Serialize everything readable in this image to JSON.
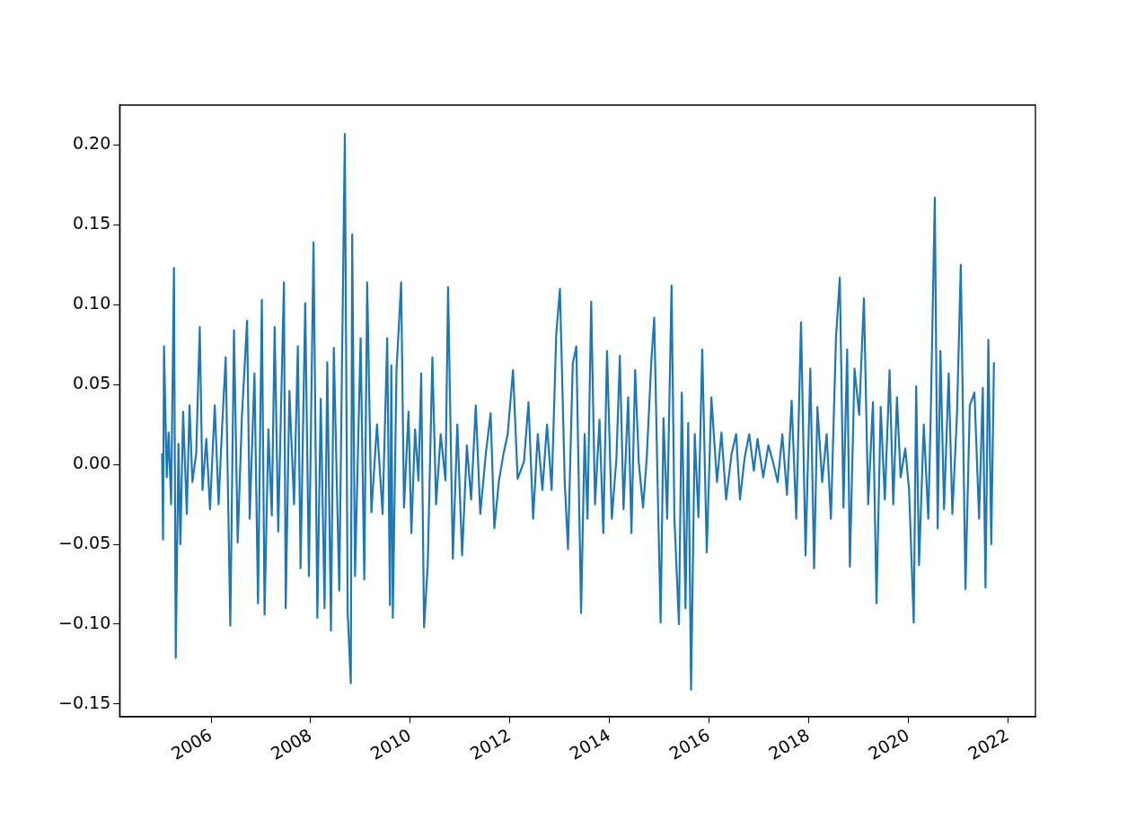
{
  "chart_data": {
    "type": "line",
    "xlim": [
      "2004-03-01",
      "2022-07-22"
    ],
    "xticks": [
      "2006",
      "2008",
      "2010",
      "2012",
      "2014",
      "2016",
      "2018",
      "2020",
      "2022"
    ],
    "ylim": [
      -0.158,
      0.225
    ],
    "yticks": [
      {
        "value": -0.15,
        "label": "−0.15"
      },
      {
        "value": -0.1,
        "label": "−0.10"
      },
      {
        "value": -0.05,
        "label": "−0.05"
      },
      {
        "value": 0,
        "label": "0.00"
      },
      {
        "value": 0.05,
        "label": "0.05"
      },
      {
        "value": 0.1,
        "label": "0.10"
      },
      {
        "value": 0.15,
        "label": "0.15"
      },
      {
        "value": 0.2,
        "label": "0.20"
      }
    ],
    "series": [
      {
        "color": "#1f77b4",
        "x": [
          "2005-01-07",
          "2005-01-14",
          "2005-01-21",
          "2005-02-10",
          "2005-02-24",
          "2005-03-14",
          "2005-04-04",
          "2005-04-17",
          "2005-05-07",
          "2005-05-21",
          "2005-06-10",
          "2005-07-07",
          "2005-07-27",
          "2005-08-17",
          "2005-09-14",
          "2005-10-10",
          "2005-10-30",
          "2005-11-27",
          "2005-12-24",
          "2006-01-28",
          "2006-02-25",
          "2006-03-22",
          "2006-04-18",
          "2006-05-22",
          "2006-06-18",
          "2006-07-15",
          "2006-08-15",
          "2006-09-22",
          "2006-10-11",
          "2006-11-15",
          "2006-12-11",
          "2007-01-08",
          "2007-01-28",
          "2007-02-25",
          "2007-03-22",
          "2007-04-12",
          "2007-05-08",
          "2007-06-19",
          "2007-07-02",
          "2007-07-29",
          "2007-09-01",
          "2007-09-29",
          "2007-10-19",
          "2007-11-22",
          "2007-12-19",
          "2008-01-22",
          "2008-02-19",
          "2008-03-15",
          "2008-04-12",
          "2008-05-02",
          "2008-05-29",
          "2008-06-19",
          "2008-07-29",
          "2008-09-08",
          "2008-09-29",
          "2008-10-22",
          "2008-11-01",
          "2008-11-22",
          "2009-01-02",
          "2009-01-29",
          "2009-02-19",
          "2009-03-22",
          "2009-05-02",
          "2009-06-12",
          "2009-07-16",
          "2009-08-05",
          "2009-08-15",
          "2009-08-26",
          "2009-09-22",
          "2009-10-26",
          "2009-11-16",
          "2009-12-19",
          "2010-01-09",
          "2010-02-05",
          "2010-03-02",
          "2010-03-22",
          "2010-04-12",
          "2010-05-09",
          "2010-06-12",
          "2010-07-09",
          "2010-08-12",
          "2010-09-16",
          "2010-10-05",
          "2010-11-09",
          "2010-12-12",
          "2011-01-16",
          "2011-02-20",
          "2011-03-23",
          "2011-04-26",
          "2011-05-29",
          "2011-07-09",
          "2011-08-13",
          "2011-09-09",
          "2011-10-13",
          "2011-11-16",
          "2011-12-16",
          "2012-01-24",
          "2012-02-27",
          "2012-04-14",
          "2012-05-17",
          "2012-06-20",
          "2012-07-24",
          "2012-08-27",
          "2012-09-30",
          "2012-11-03",
          "2012-12-07",
          "2013-01-03",
          "2013-02-07",
          "2013-03-03",
          "2013-04-07",
          "2013-05-03",
          "2013-06-07",
          "2013-07-03",
          "2013-07-24",
          "2013-08-20",
          "2013-09-17",
          "2013-10-20",
          "2013-11-17",
          "2013-12-14",
          "2014-01-18",
          "2014-02-21",
          "2014-03-18",
          "2014-04-14",
          "2014-05-18",
          "2014-06-11",
          "2014-07-08",
          "2014-08-04",
          "2014-09-04",
          "2014-10-01",
          "2014-11-04",
          "2014-11-25",
          "2014-12-18",
          "2015-01-11",
          "2015-02-01",
          "2015-02-28",
          "2015-04-01",
          "2015-04-22",
          "2015-05-25",
          "2015-06-15",
          "2015-07-12",
          "2015-08-01",
          "2015-08-22",
          "2015-09-18",
          "2015-10-15",
          "2015-11-12",
          "2015-12-15",
          "2016-01-18",
          "2016-02-28",
          "2016-04-01",
          "2016-05-05",
          "2016-06-15",
          "2016-07-18",
          "2016-08-15",
          "2016-09-18",
          "2016-10-22",
          "2016-11-25",
          "2016-12-22",
          "2017-02-02",
          "2017-03-12",
          "2017-04-16",
          "2017-05-19",
          "2017-06-22",
          "2017-07-26",
          "2017-08-29",
          "2017-10-02",
          "2017-11-06",
          "2017-12-09",
          "2018-01-13",
          "2018-02-10",
          "2018-03-06",
          "2018-04-10",
          "2018-05-13",
          "2018-06-13",
          "2018-07-20",
          "2018-08-17",
          "2018-09-13",
          "2018-10-10",
          "2018-10-30",
          "2018-12-03",
          "2019-01-06",
          "2019-02-10",
          "2019-03-13",
          "2019-04-17",
          "2019-05-13",
          "2019-06-13",
          "2019-07-13",
          "2019-08-17",
          "2019-09-13",
          "2019-10-10",
          "2019-11-06",
          "2019-12-10",
          "2020-01-07",
          "2020-02-10",
          "2020-02-28",
          "2020-03-20",
          "2020-04-24",
          "2020-05-27",
          "2020-06-14",
          "2020-07-14",
          "2020-08-04",
          "2020-08-24",
          "2020-09-20",
          "2020-10-24",
          "2020-11-20",
          "2020-12-24",
          "2021-01-21",
          "2021-02-24",
          "2021-03-28",
          "2021-05-01",
          "2021-06-04",
          "2021-07-01",
          "2021-07-21",
          "2021-08-11",
          "2021-09-01",
          "2021-09-21"
        ],
        "values": [
          0.007,
          -0.047,
          0.074,
          -0.008,
          0.02,
          -0.025,
          0.123,
          -0.121,
          0.013,
          -0.05,
          0.033,
          -0.031,
          0.037,
          -0.011,
          0.007,
          0.086,
          -0.016,
          0.016,
          -0.028,
          0.037,
          -0.025,
          0.022,
          0.067,
          -0.101,
          0.084,
          -0.049,
          0.03,
          0.09,
          -0.034,
          0.057,
          -0.087,
          0.103,
          -0.094,
          0.022,
          -0.032,
          0.086,
          -0.042,
          0.114,
          -0.09,
          0.046,
          -0.025,
          0.074,
          -0.065,
          0.101,
          -0.07,
          0.139,
          -0.096,
          0.041,
          -0.09,
          0.064,
          -0.104,
          0.073,
          -0.079,
          0.207,
          -0.093,
          -0.137,
          0.144,
          -0.07,
          0.079,
          -0.072,
          0.114,
          -0.03,
          0.025,
          -0.031,
          0.079,
          -0.088,
          0.062,
          -0.096,
          0.059,
          0.114,
          -0.027,
          0.033,
          -0.043,
          0.022,
          -0.01,
          0.057,
          -0.102,
          -0.063,
          0.067,
          -0.025,
          0.019,
          -0.01,
          0.111,
          -0.059,
          0.025,
          -0.057,
          0.012,
          -0.022,
          0.037,
          -0.031,
          0.007,
          0.032,
          -0.04,
          -0.01,
          0.007,
          0.019,
          0.059,
          -0.009,
          0.002,
          0.039,
          -0.034,
          0.019,
          -0.016,
          0.025,
          -0.016,
          0.082,
          0.11,
          -0.011,
          -0.053,
          0.063,
          0.074,
          -0.093,
          0.019,
          -0.034,
          0.102,
          -0.025,
          0.028,
          -0.043,
          0.071,
          -0.034,
          0.004,
          0.068,
          -0.028,
          0.042,
          -0.043,
          0.059,
          0.001,
          -0.027,
          0.004,
          0.065,
          0.092,
          -0.005,
          -0.099,
          0.029,
          -0.034,
          0.112,
          -0.034,
          -0.1,
          0.045,
          -0.09,
          0.026,
          -0.141,
          0.019,
          -0.033,
          0.072,
          -0.055,
          0.042,
          -0.011,
          0.02,
          -0.022,
          0.007,
          0.019,
          -0.022,
          0.004,
          0.019,
          -0.004,
          0.016,
          -0.008,
          0.012,
          0.001,
          -0.011,
          0.019,
          -0.019,
          0.04,
          -0.034,
          0.089,
          -0.057,
          0.06,
          -0.065,
          0.036,
          -0.011,
          0.019,
          -0.034,
          0.079,
          0.117,
          -0.027,
          0.072,
          -0.064,
          0.06,
          0.031,
          0.104,
          -0.025,
          0.039,
          -0.087,
          0.036,
          -0.022,
          0.059,
          -0.025,
          0.042,
          -0.008,
          0.01,
          -0.016,
          -0.099,
          0.049,
          -0.063,
          0.025,
          -0.034,
          0.031,
          0.167,
          -0.04,
          0.071,
          -0.028,
          0.057,
          -0.031,
          0.031,
          0.125,
          -0.078,
          0.037,
          0.045,
          -0.034,
          0.048,
          -0.077,
          0.078,
          -0.05,
          0.064
        ]
      }
    ]
  }
}
